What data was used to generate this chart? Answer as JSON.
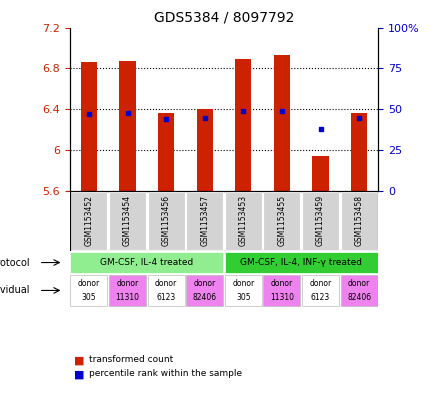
{
  "title": "GDS5384 / 8097792",
  "samples": [
    "GSM1153452",
    "GSM1153454",
    "GSM1153456",
    "GSM1153457",
    "GSM1153453",
    "GSM1153455",
    "GSM1153459",
    "GSM1153458"
  ],
  "red_values": [
    6.86,
    6.87,
    6.36,
    6.4,
    6.89,
    6.93,
    5.94,
    6.36
  ],
  "blue_values": [
    6.355,
    6.36,
    6.3,
    6.31,
    6.38,
    6.385,
    6.2,
    6.315
  ],
  "ylim_left": [
    5.6,
    7.2
  ],
  "ylim_right": [
    0,
    100
  ],
  "yticks_left": [
    5.6,
    6.0,
    6.4,
    6.8,
    7.2
  ],
  "yticks_right": [
    0,
    25,
    50,
    75,
    100
  ],
  "ytick_labels_left": [
    "5.6",
    "6",
    "6.4",
    "6.8",
    "7.2"
  ],
  "ytick_labels_right": [
    "0",
    "25",
    "50",
    "75",
    "100%"
  ],
  "protocol_groups": [
    {
      "label": "GM-CSF, IL-4 treated",
      "start": 0,
      "end": 4,
      "color": "#90ee90"
    },
    {
      "label": "GM-CSF, IL-4, INF-γ treated",
      "start": 4,
      "end": 8,
      "color": "#32cd32"
    }
  ],
  "individuals": [
    {
      "label_top": "donor",
      "label_bot": "305",
      "color": "#ffffff"
    },
    {
      "label_top": "donor",
      "label_bot": "11310",
      "color": "#ee82ee"
    },
    {
      "label_top": "donor",
      "label_bot": "6123",
      "color": "#ffffff"
    },
    {
      "label_top": "donor",
      "label_bot": "82406",
      "color": "#ee82ee"
    },
    {
      "label_top": "donor",
      "label_bot": "305",
      "color": "#ffffff"
    },
    {
      "label_top": "donor",
      "label_bot": "11310",
      "color": "#ee82ee"
    },
    {
      "label_top": "donor",
      "label_bot": "6123",
      "color": "#ffffff"
    },
    {
      "label_top": "donor",
      "label_bot": "82406",
      "color": "#ee82ee"
    }
  ],
  "bar_bottom": 5.6,
  "bar_color_red": "#cc2200",
  "bar_color_blue": "#0000cc",
  "legend_red": "transformed count",
  "legend_blue": "percentile rank within the sample",
  "grid_dotted_vals": [
    6.0,
    6.4,
    6.8
  ],
  "bar_width": 0.42
}
